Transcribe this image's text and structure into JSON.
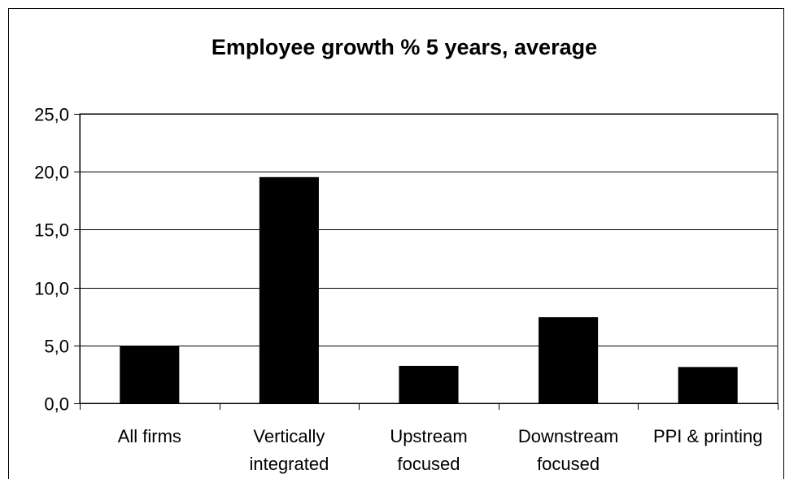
{
  "chart_data": {
    "type": "bar",
    "title": "Employee growth % 5 years, average",
    "categories": [
      [
        "All firms"
      ],
      [
        "Vertically",
        "integrated"
      ],
      [
        "Upstream",
        "focused"
      ],
      [
        "Downstream",
        "focused"
      ],
      [
        "PPI & printing"
      ]
    ],
    "values": [
      4.9,
      19.5,
      3.2,
      7.4,
      3.1
    ],
    "ylim": [
      0,
      25
    ],
    "yticks": [
      "0,0",
      "5,0",
      "10,0",
      "15,0",
      "20,0",
      "25,0"
    ],
    "ytick_values": [
      0,
      5,
      10,
      15,
      20,
      25
    ],
    "grid": true,
    "legend": "none",
    "bar_color": "#000000",
    "xlabel": "",
    "ylabel": ""
  }
}
